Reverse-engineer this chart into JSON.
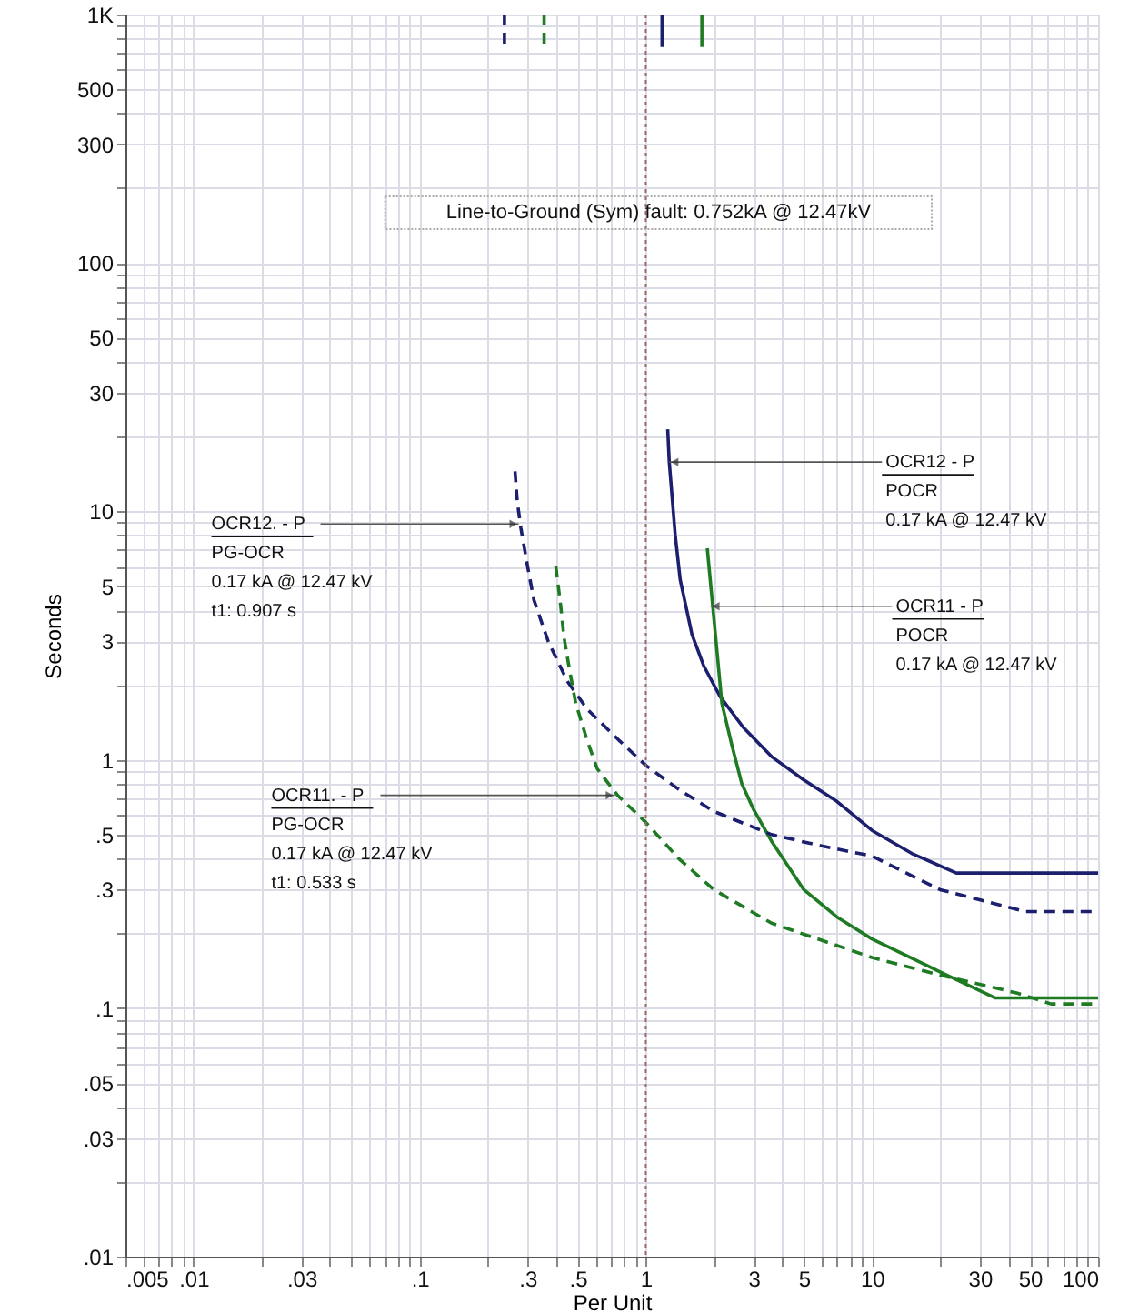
{
  "chart_data": {
    "type": "line",
    "xlabel": "Per Unit",
    "ylabel": "Seconds",
    "log": "xy",
    "grid": true,
    "xlim": [
      0.005,
      100
    ],
    "ylim": [
      0.01,
      1000
    ],
    "xticks": [
      {
        "value": 0.005,
        "label": ".005"
      },
      {
        "value": 0.01,
        "label": ".01"
      },
      {
        "value": 0.03,
        "label": ".03"
      },
      {
        "value": 0.1,
        "label": ".1"
      },
      {
        "value": 0.3,
        "label": ".3"
      },
      {
        "value": 0.5,
        "label": ".5"
      },
      1,
      3,
      5,
      10,
      30,
      50,
      100
    ],
    "yticks": [
      {
        "value": 0.01,
        "label": ".01"
      },
      {
        "value": 0.03,
        "label": ".03"
      },
      {
        "value": 0.05,
        "label": ".05"
      },
      {
        "value": 0.1,
        "label": ".1"
      },
      {
        "value": 0.3,
        "label": ".3"
      },
      {
        "value": 0.5,
        "label": ".5"
      },
      1,
      3,
      5,
      10,
      30,
      50,
      100,
      300,
      500,
      {
        "value": 1000,
        "label": "1K"
      }
    ],
    "series": [
      {
        "color": "#1c1f6e",
        "line_style": "solid",
        "x": [
          1.25,
          1.27,
          1.35,
          1.42,
          1.6,
          1.8,
          2.13,
          2.7,
          3.6,
          5,
          7,
          10,
          15,
          23.6,
          100
        ],
        "values": [
          21.4,
          15.8,
          8,
          5.3,
          3.2,
          2.4,
          1.8,
          1.35,
          1.03,
          0.83,
          0.68,
          0.52,
          0.42,
          0.35,
          0.35
        ]
      },
      {
        "color": "#1f7a24",
        "line_style": "solid",
        "x": [
          1.87,
          1.98,
          2.17,
          2.4,
          2.66,
          3.0,
          3.6,
          5,
          7,
          10,
          20,
          35,
          100
        ],
        "values": [
          7.1,
          4.1,
          1.69,
          1.15,
          0.8,
          0.63,
          0.47,
          0.3,
          0.233,
          0.19,
          0.14,
          0.11,
          0.11
        ]
      },
      {
        "color": "#1c1f6e",
        "line_style": "dashed",
        "x": [
          0.264,
          0.27,
          0.28,
          0.3,
          0.32,
          0.37,
          0.45,
          0.55,
          0.76,
          1,
          1.4,
          2,
          3.6,
          6,
          10,
          20,
          47.6,
          100
        ],
        "values": [
          14.5,
          11,
          8.6,
          6,
          4.4,
          3,
          2.07,
          1.6,
          1.2,
          0.95,
          0.76,
          0.62,
          0.5,
          0.45,
          0.41,
          0.3,
          0.245,
          0.245
        ]
      },
      {
        "color": "#1f7a24",
        "line_style": "dashed",
        "x": [
          0.4,
          0.42,
          0.435,
          0.46,
          0.49,
          0.55,
          0.61,
          0.75,
          1,
          1.4,
          2,
          3.6,
          10,
          20,
          44,
          62,
          100
        ],
        "values": [
          6,
          4.2,
          3.1,
          2.3,
          1.69,
          1.2,
          0.92,
          0.72,
          0.56,
          0.4,
          0.3,
          0.22,
          0.16,
          0.136,
          0.115,
          0.104,
          0.104
        ]
      },
      {
        "color": "#1c1f6e",
        "line_style": "dashed",
        "x": [
          0.237,
          0.237
        ],
        "values": [
          1000,
          740
        ]
      },
      {
        "color": "#1f7a24",
        "line_style": "dashed",
        "x": [
          0.355,
          0.355
        ],
        "values": [
          1000,
          740
        ]
      },
      {
        "color": "#1c1f6e",
        "line_style": "solid",
        "x": [
          1.18,
          1.18
        ],
        "values": [
          1000,
          740
        ]
      },
      {
        "color": "#1f7a24",
        "line_style": "solid",
        "x": [
          1.77,
          1.77
        ],
        "values": [
          1000,
          740
        ]
      }
    ],
    "ref_lines": [
      {
        "axis": "x",
        "value": 1,
        "color": "#9a6a6a",
        "line_style": "dotted"
      }
    ],
    "annotations": [
      "Line-to-Ground (Sym)   fault: 0.752kA @ 12.47kV",
      {
        "text": "OCR12 - P\nPOCR\n0.17 kA @ 12.47 kV",
        "x": 1.27,
        "y": 15.8
      },
      {
        "text": "OCR11 - P\nPOCR\n0.17 kA @ 12.47 kV",
        "x": 1.93,
        "y": 4.15
      },
      {
        "text": "OCR12. - P\nPG-OCR\n0.17 kA @ 12.47 kV\nt1: 0.907 s",
        "x": 0.274,
        "y": 8.9
      },
      {
        "text": "OCR11. - P\nPG-OCR\n0.17 kA @ 12.47 kV\nt1: 0.533 s",
        "x": 0.73,
        "y": 0.72
      }
    ]
  }
}
